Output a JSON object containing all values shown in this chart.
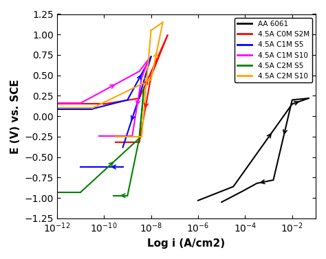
{
  "title": "",
  "xlabel": "Log i (A/cm2)",
  "ylabel": "E (V) vs. SCE",
  "ylim": [
    -1.25,
    1.25
  ],
  "background_color": "#ffffff",
  "legend_entries": [
    {
      "label": "AA 6061",
      "color": "black"
    },
    {
      "label": "4.5A C0M S2M",
      "color": "red"
    },
    {
      "label": "4.5A C1M S5",
      "color": "blue"
    },
    {
      "label": "4.5A C1M S10",
      "color": "magenta"
    },
    {
      "label": "4.5A C2M S5",
      "color": "green"
    },
    {
      "label": "4.5A C2M S10",
      "color": "orange"
    }
  ]
}
